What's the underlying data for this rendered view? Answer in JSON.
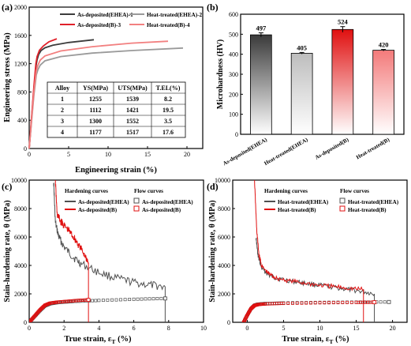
{
  "chart_data": [
    {
      "panel": "(a)",
      "type": "line",
      "xlabel": "Engineering strain (%)",
      "ylabel": "Engineering stress (MPa)",
      "xlim": [
        0,
        22
      ],
      "ylim": [
        0,
        2000
      ],
      "xticks": [
        0,
        5,
        10,
        15,
        20
      ],
      "yticks": [
        0,
        400,
        800,
        1200,
        1600,
        2000
      ],
      "legend_position": "top",
      "series": [
        {
          "name": "As-deposited(EHEA)-1",
          "color": "#3c3c3c",
          "x": [
            0,
            0.3,
            0.6,
            0.85,
            1.0,
            1.2,
            1.5,
            2,
            3,
            5,
            8.2
          ],
          "y": [
            0,
            420,
            840,
            1160,
            1255,
            1330,
            1385,
            1425,
            1460,
            1500,
            1539
          ]
        },
        {
          "name": "Heat-treated(EHEA)-2",
          "color": "#9a9a9a",
          "x": [
            0,
            0.3,
            0.6,
            0.9,
            1.1,
            1.4,
            2,
            4,
            8,
            13,
            19.5
          ],
          "y": [
            0,
            380,
            760,
            1040,
            1112,
            1180,
            1240,
            1300,
            1350,
            1385,
            1421
          ]
        },
        {
          "name": "As-deposited(B)-3",
          "color": "#e0202a",
          "x": [
            0,
            0.3,
            0.6,
            0.85,
            1.0,
            1.3,
            1.8,
            2.5,
            3.5
          ],
          "y": [
            0,
            440,
            880,
            1200,
            1300,
            1390,
            1450,
            1510,
            1552
          ]
        },
        {
          "name": "Heat-treated(B)-4",
          "color": "#f28080",
          "x": [
            0,
            0.3,
            0.6,
            0.9,
            1.1,
            1.4,
            2,
            4,
            8,
            13,
            17.6
          ],
          "y": [
            0,
            400,
            800,
            1100,
            1177,
            1250,
            1310,
            1380,
            1440,
            1490,
            1517
          ]
        }
      ],
      "table": {
        "headers": [
          "Alloy",
          "YS(MPa)",
          "UTS(MPa)",
          "T.EL(%)"
        ],
        "rows": [
          [
            "1",
            "1255",
            "1539",
            "8.2"
          ],
          [
            "2",
            "1112",
            "1421",
            "19.5"
          ],
          [
            "3",
            "1300",
            "1552",
            "3.5"
          ],
          [
            "4",
            "1177",
            "1517",
            "17.6"
          ]
        ]
      }
    },
    {
      "panel": "(b)",
      "type": "bar",
      "ylabel": "Microhardness (HV)",
      "ylim": [
        0,
        600
      ],
      "yticks": [
        0,
        100,
        200,
        300,
        400,
        500,
        600
      ],
      "categories": [
        "As-deposited(EHEA)",
        "Heat-treated(EHEA)",
        "As-deposited(B)",
        "Heat-treated(B)"
      ],
      "values": [
        497,
        405,
        524,
        420
      ],
      "errors": [
        10,
        4,
        14,
        4
      ],
      "value_labels": [
        "497",
        "405",
        "524",
        "420"
      ],
      "colors": [
        "#3a3a3a",
        "#bdbdbd",
        "#e01010",
        "#f37a7a"
      ]
    },
    {
      "panel": "(c)",
      "type": "line",
      "xlabel_main": "True strain, ε",
      "xlabel_sub": "T",
      "xlabel_unit": " (%)",
      "ylabel": "Stain-hardening rate, θ (MPa)",
      "xlim": [
        0,
        10
      ],
      "ylim": [
        0,
        10000
      ],
      "xticks": [
        0,
        2,
        4,
        6,
        8,
        10
      ],
      "yticks": [
        0,
        2000,
        4000,
        6000,
        8000,
        10000
      ],
      "legend_titles": [
        "Hardening curves",
        "Flow curves"
      ],
      "series": [
        {
          "name": "As-deposited(EHEA)",
          "group": "hardening",
          "color": "#505050",
          "x": [
            1.4,
            1.5,
            1.7,
            2.0,
            2.5,
            3.0,
            4.0,
            5.0,
            6.0,
            7.0,
            7.8
          ],
          "y": [
            10000,
            7000,
            6000,
            5300,
            4600,
            4100,
            3500,
            3100,
            2800,
            2600,
            2500
          ]
        },
        {
          "name": "As-deposited(B)",
          "group": "hardening",
          "color": "#e01010",
          "x": [
            1.5,
            1.6,
            1.8,
            2.0,
            2.3,
            2.6,
            2.9,
            3.2,
            3.4
          ],
          "y": [
            10000,
            7600,
            7100,
            6800,
            6400,
            5900,
            5300,
            4700,
            4200
          ]
        },
        {
          "name": "As-deposited(EHEA)",
          "group": "flow",
          "color": "#505050",
          "x": [
            0,
            0.3,
            0.6,
            0.9,
            1.2,
            1.6,
            2.5,
            4.0,
            6.0,
            7.8
          ],
          "y": [
            0,
            400,
            800,
            1150,
            1300,
            1380,
            1460,
            1540,
            1620,
            1680
          ]
        },
        {
          "name": "As-deposited(B)",
          "group": "flow",
          "color": "#e01010",
          "x": [
            0,
            0.3,
            0.6,
            0.9,
            1.2,
            1.6,
            2.2,
            2.8,
            3.4
          ],
          "y": [
            0,
            420,
            850,
            1200,
            1350,
            1420,
            1480,
            1540,
            1580
          ]
        }
      ]
    },
    {
      "panel": "(d)",
      "type": "line",
      "xlabel_main": "True strain, ε",
      "xlabel_sub": "T",
      "xlabel_unit": " (%)",
      "ylabel": "Stain-hardening rate, θ (MPa)",
      "xlim": [
        -2,
        22
      ],
      "ylim": [
        0,
        10000
      ],
      "xticks": [
        0,
        5,
        10,
        15,
        20
      ],
      "yticks": [
        0,
        2000,
        4000,
        6000,
        8000,
        10000
      ],
      "legend_titles": [
        "Hardening curves",
        "Flow curves"
      ],
      "series": [
        {
          "name": "Heat-treated(EHEA)",
          "group": "hardening",
          "color": "#505050",
          "x": [
            1.2,
            1.5,
            2.0,
            3.0,
            4.0,
            6.0,
            8.0,
            10.0,
            12.0,
            14.0,
            16.0,
            17.5
          ],
          "y": [
            6000,
            4600,
            3800,
            3300,
            3100,
            2900,
            2750,
            2600,
            2450,
            2300,
            2150,
            2000
          ]
        },
        {
          "name": "Heat-treated(B)",
          "group": "hardening",
          "color": "#e01010",
          "x": [
            1.0,
            1.3,
            1.6,
            2.0,
            3.0,
            4.0,
            6.0,
            8.0,
            10.0,
            12.0,
            14.0,
            16.0
          ],
          "y": [
            10000,
            6500,
            4800,
            3900,
            3400,
            3100,
            2900,
            2750,
            2600,
            2500,
            2400,
            2300
          ]
        },
        {
          "name": "Heat-treated(EHEA)",
          "group": "flow",
          "color": "#505050",
          "x": [
            -0.5,
            0,
            0.5,
            1.0,
            1.5,
            2.5,
            5.0,
            10.0,
            15.0,
            19.5
          ],
          "y": [
            0,
            500,
            950,
            1200,
            1280,
            1320,
            1360,
            1400,
            1420,
            1430
          ]
        },
        {
          "name": "Heat-treated(B)",
          "group": "flow",
          "color": "#e01010",
          "x": [
            -0.5,
            0,
            0.5,
            1.0,
            1.5,
            2.5,
            5.0,
            10.0,
            15.0,
            17.5
          ],
          "y": [
            0,
            500,
            950,
            1180,
            1250,
            1290,
            1330,
            1370,
            1400,
            1410
          ]
        }
      ]
    }
  ]
}
